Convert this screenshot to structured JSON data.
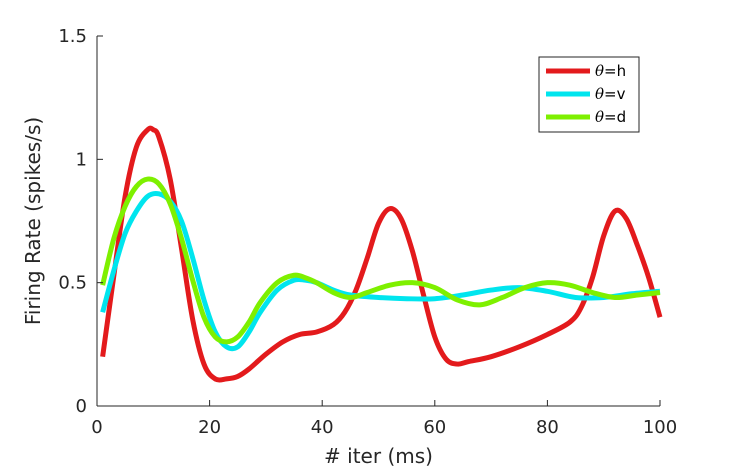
{
  "chart_data": {
    "type": "line",
    "xlabel": "# iter (ms)",
    "ylabel": "Firing Rate (spikes/s)",
    "xlim": [
      0,
      100
    ],
    "ylim": [
      0,
      1.5
    ],
    "xticks": [
      0,
      20,
      40,
      60,
      80,
      100
    ],
    "yticks": [
      0,
      0.5,
      1,
      1.5
    ],
    "xtick_labels": [
      "0",
      "20",
      "40",
      "60",
      "80",
      "100"
    ],
    "ytick_labels": [
      "0",
      "0.5",
      "1",
      "1.5"
    ],
    "grid": false,
    "legend_position": "top-right",
    "series": [
      {
        "name": "θ=h",
        "legend_symbol": "θ",
        "legend_suffix": "=h",
        "color": "#e31a1c",
        "x": [
          1,
          3,
          5,
          7,
          9,
          10,
          11,
          13,
          15,
          17,
          19,
          21,
          23,
          25,
          27,
          30,
          33,
          36,
          39,
          42,
          44,
          46,
          48,
          50,
          52,
          54,
          56,
          58,
          60,
          62,
          64,
          66,
          70,
          75,
          80,
          84,
          86,
          88,
          90,
          92,
          94,
          96,
          98,
          100
        ],
        "y": [
          0.2,
          0.53,
          0.85,
          1.05,
          1.12,
          1.12,
          1.09,
          0.92,
          0.64,
          0.35,
          0.17,
          0.11,
          0.11,
          0.12,
          0.15,
          0.21,
          0.26,
          0.29,
          0.3,
          0.33,
          0.38,
          0.47,
          0.6,
          0.74,
          0.8,
          0.76,
          0.63,
          0.45,
          0.28,
          0.19,
          0.17,
          0.18,
          0.2,
          0.24,
          0.29,
          0.34,
          0.4,
          0.52,
          0.69,
          0.79,
          0.76,
          0.65,
          0.52,
          0.36
        ]
      },
      {
        "name": "θ=v",
        "legend_symbol": "θ",
        "legend_suffix": "=v",
        "color": "#00e5ee",
        "x": [
          1,
          3,
          5,
          7,
          9,
          11,
          13,
          15,
          17,
          19,
          21,
          23,
          25,
          27,
          29,
          32,
          35,
          37,
          39,
          42,
          45,
          50,
          55,
          60,
          65,
          70,
          75,
          80,
          85,
          90,
          95,
          100
        ],
        "y": [
          0.38,
          0.55,
          0.7,
          0.79,
          0.85,
          0.86,
          0.83,
          0.75,
          0.6,
          0.43,
          0.3,
          0.24,
          0.24,
          0.3,
          0.38,
          0.47,
          0.51,
          0.51,
          0.5,
          0.47,
          0.45,
          0.44,
          0.435,
          0.435,
          0.45,
          0.47,
          0.48,
          0.465,
          0.44,
          0.44,
          0.455,
          0.465
        ]
      },
      {
        "name": "θ=d",
        "legend_symbol": "θ",
        "legend_suffix": "=d",
        "color": "#7ef000",
        "x": [
          1,
          3,
          5,
          7,
          9,
          11,
          13,
          15,
          17,
          19,
          21,
          23,
          25,
          27,
          29,
          32,
          35,
          37,
          39,
          42,
          45,
          48,
          52,
          56,
          60,
          64,
          68,
          72,
          76,
          80,
          84,
          88,
          92,
          96,
          100
        ],
        "y": [
          0.49,
          0.68,
          0.81,
          0.89,
          0.92,
          0.9,
          0.82,
          0.68,
          0.51,
          0.36,
          0.28,
          0.26,
          0.28,
          0.34,
          0.42,
          0.5,
          0.53,
          0.52,
          0.5,
          0.46,
          0.44,
          0.46,
          0.49,
          0.5,
          0.48,
          0.43,
          0.41,
          0.44,
          0.48,
          0.5,
          0.49,
          0.46,
          0.44,
          0.45,
          0.46
        ]
      }
    ]
  }
}
